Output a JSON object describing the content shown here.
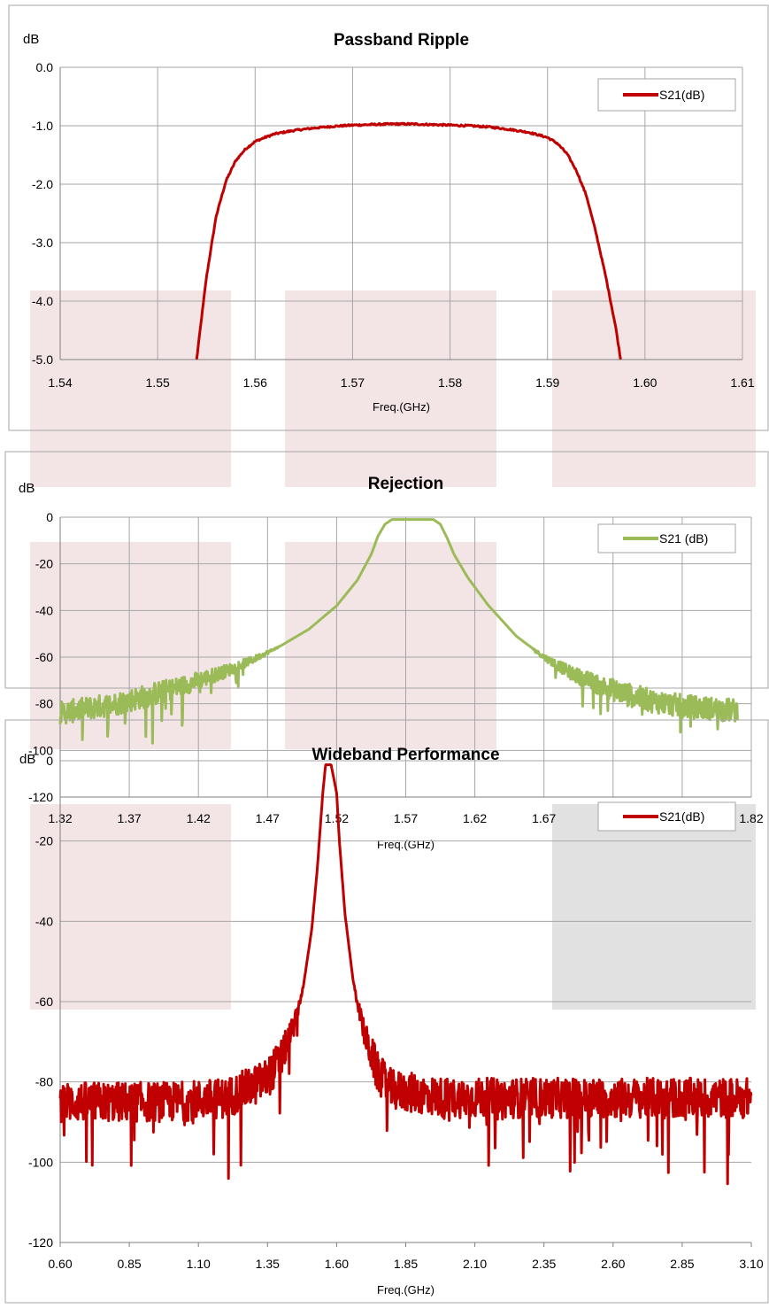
{
  "colors": {
    "red": "#C00000",
    "green": "#9BBB59",
    "grid": "#A6A6A6",
    "axis": "#7F7F7F",
    "frame": "#A6A6A6",
    "text": "#000000",
    "overlay_pink": "#E9CFCF",
    "overlay_gray": "#C8C8C8"
  },
  "chart_data": [
    {
      "type": "line",
      "title": "Passband Ripple",
      "ylabel": "dB",
      "xlabel": "Freq.(GHz)",
      "xlim": [
        1.54,
        1.61
      ],
      "ylim": [
        -5.0,
        0.0
      ],
      "xticks": [
        "1.54",
        "1.55",
        "1.56",
        "1.57",
        "1.58",
        "1.59",
        "1.60",
        "1.61"
      ],
      "yticks": [
        "0.0",
        "-1.0",
        "-2.0",
        "-3.0",
        "-4.0",
        "-5.0"
      ],
      "grid": true,
      "legend": "top-right",
      "series": [
        {
          "name": "S21(dB)",
          "color": "red",
          "x": [
            1.554,
            1.555,
            1.556,
            1.557,
            1.558,
            1.559,
            1.56,
            1.561,
            1.562,
            1.564,
            1.566,
            1.568,
            1.57,
            1.572,
            1.574,
            1.576,
            1.578,
            1.58,
            1.582,
            1.584,
            1.586,
            1.588,
            1.59,
            1.591,
            1.592,
            1.593,
            1.594,
            1.595,
            1.596,
            1.597,
            1.5975
          ],
          "y": [
            -5.0,
            -3.6,
            -2.55,
            -1.95,
            -1.6,
            -1.4,
            -1.27,
            -1.2,
            -1.14,
            -1.08,
            -1.04,
            -1.01,
            -0.99,
            -0.98,
            -0.97,
            -0.97,
            -0.98,
            -0.99,
            -1.0,
            -1.02,
            -1.06,
            -1.11,
            -1.2,
            -1.3,
            -1.48,
            -1.78,
            -2.2,
            -2.85,
            -3.6,
            -4.45,
            -5.0
          ]
        }
      ]
    },
    {
      "type": "line",
      "title": "Rejection",
      "ylabel": "dB",
      "xlabel": "Freq.(GHz)",
      "xlim": [
        1.32,
        1.82
      ],
      "ylim": [
        -120,
        0
      ],
      "xticks": [
        "1.32",
        "1.37",
        "1.42",
        "1.47",
        "1.52",
        "1.57",
        "1.62",
        "1.67",
        "1.72",
        "1.77",
        "1.82"
      ],
      "yticks": [
        "0",
        "-20",
        "-40",
        "-60",
        "-80",
        "-100",
        "-120"
      ],
      "grid": true,
      "legend": "top-right",
      "series": [
        {
          "name": "S21 (dB)",
          "color": "green",
          "x": [
            1.32,
            1.34,
            1.36,
            1.38,
            1.4,
            1.42,
            1.44,
            1.46,
            1.48,
            1.5,
            1.52,
            1.535,
            1.545,
            1.55,
            1.555,
            1.56,
            1.57,
            1.58,
            1.59,
            1.595,
            1.6,
            1.605,
            1.615,
            1.63,
            1.65,
            1.67,
            1.69,
            1.71,
            1.73,
            1.75,
            1.77,
            1.79,
            1.81
          ],
          "y": [
            -84,
            -82,
            -80,
            -77,
            -74,
            -70,
            -66,
            -61,
            -55,
            -48,
            -38,
            -27,
            -16,
            -8,
            -3,
            -1,
            -1,
            -1,
            -1,
            -3,
            -9,
            -16,
            -26,
            -38,
            -51,
            -60,
            -67,
            -72,
            -76,
            -79,
            -81,
            -82,
            -83
          ]
        }
      ]
    },
    {
      "type": "line",
      "title": "Wideband Performance",
      "ylabel": "dB",
      "xlabel": "Freq.(GHz)",
      "xlim": [
        0.6,
        3.1
      ],
      "ylim": [
        -120,
        0
      ],
      "xticks": [
        "0.60",
        "0.85",
        "1.10",
        "1.35",
        "1.60",
        "1.85",
        "2.10",
        "2.35",
        "2.60",
        "2.85",
        "3.10"
      ],
      "yticks": [
        "0",
        "-20",
        "-40",
        "-60",
        "-80",
        "-100",
        "-120"
      ],
      "grid": false,
      "legend": "top-right",
      "series": [
        {
          "name": "S21(dB)",
          "color": "red",
          "x": [
            0.6,
            0.8,
            1.0,
            1.2,
            1.3,
            1.35,
            1.4,
            1.45,
            1.48,
            1.51,
            1.53,
            1.55,
            1.56,
            1.58,
            1.6,
            1.61,
            1.63,
            1.66,
            1.7,
            1.75,
            1.8,
            2.0,
            2.4,
            2.8,
            3.1
          ],
          "y": [
            -85,
            -85,
            -85,
            -84,
            -81,
            -79,
            -74,
            -65,
            -56,
            -42,
            -27,
            -8,
            -1,
            -1,
            -8,
            -20,
            -38,
            -55,
            -68,
            -78,
            -82,
            -84,
            -84,
            -84,
            -84
          ]
        }
      ]
    }
  ]
}
